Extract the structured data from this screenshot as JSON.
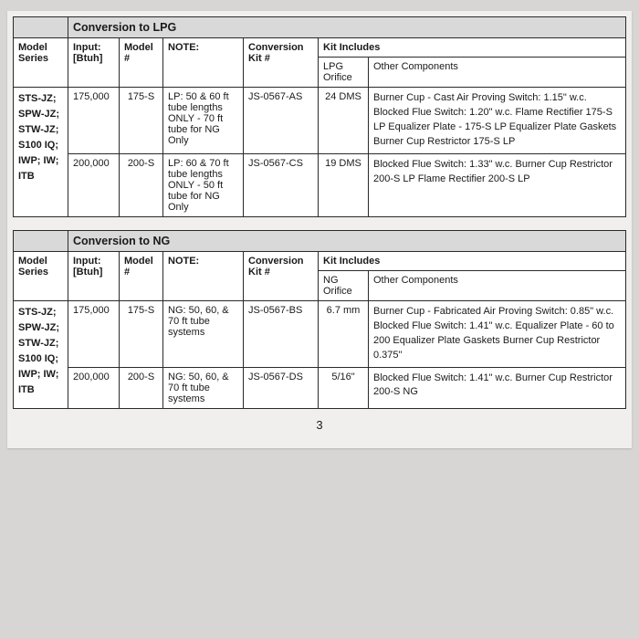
{
  "page_number": "3",
  "tables": [
    {
      "title": "Conversion to LPG",
      "kit_includes_label": "Kit Includes",
      "headers": {
        "model_series": "Model Series",
        "input": "Input: [Btuh]",
        "model_num": "Model #",
        "note": "NOTE:",
        "conv_kit": "Conversion Kit #",
        "orifice": "LPG Orifice",
        "other": "Other Components"
      },
      "model_series_list": "STS-JZ;\nSPW-JZ;\nSTW-JZ;\nS100\nIQ;\nIWP;\nIW;\nITB",
      "rows": [
        {
          "input": "175,000",
          "model_num": "175-S",
          "note": "LP: 50 & 60 ft tube lengths ONLY\n- 70 ft tube for NG Only",
          "conv_kit": "JS-0567-AS",
          "orifice": "24 DMS",
          "other": "Burner Cup - Cast\nAir Proving Switch: 1.15\" w.c.\nBlocked Flue Switch: 1.20\" w.c.\nFlame Rectifier 175-S LP\nEqualizer Plate - 175-S LP\nEqualizer Plate Gaskets\nBurner Cup Restrictor 175-S LP"
        },
        {
          "input": "200,000",
          "model_num": "200-S",
          "note": "LP: 60 & 70 ft tube lengths ONLY\n- 50 ft tube for NG Only",
          "conv_kit": "JS-0567-CS",
          "orifice": "19 DMS",
          "other": "Blocked Flue Switch: 1.33\" w.c.\nBurner Cup Restrictor 200-S LP\nFlame Rectifier 200-S LP"
        }
      ]
    },
    {
      "title": "Conversion to NG",
      "kit_includes_label": "Kit Includes",
      "headers": {
        "model_series": "Model Series",
        "input": "Input: [Btuh]",
        "model_num": "Model #",
        "note": "NOTE:",
        "conv_kit": "Conversion Kit #",
        "orifice": "NG Orifice",
        "other": "Other Components"
      },
      "model_series_list": "STS-JZ;\nSPW-JZ;\nSTW-JZ;\nS100\nIQ;\nIWP;\nIW;\nITB",
      "rows": [
        {
          "input": "175,000",
          "model_num": "175-S",
          "note": "NG: 50, 60, & 70 ft tube systems",
          "conv_kit": "JS-0567-BS",
          "orifice": "6.7 mm",
          "other": "Burner Cup - Fabricated\nAir Proving Switch: 0.85\" w.c.\nBlocked Flue Switch: 1.41\" w.c.\nEqualizer Plate - 60 to 200\nEqualizer Plate Gaskets\nBurner Cup Restrictor 0.375\""
        },
        {
          "input": "200,000",
          "model_num": "200-S",
          "note": "NG: 50, 60, & 70 ft tube systems",
          "conv_kit": "JS-0567-DS",
          "orifice": "5/16\"",
          "other": "Blocked Flue Switch: 1.41\" w.c.\nBurner Cup Restrictor 200-S NG"
        }
      ]
    }
  ]
}
